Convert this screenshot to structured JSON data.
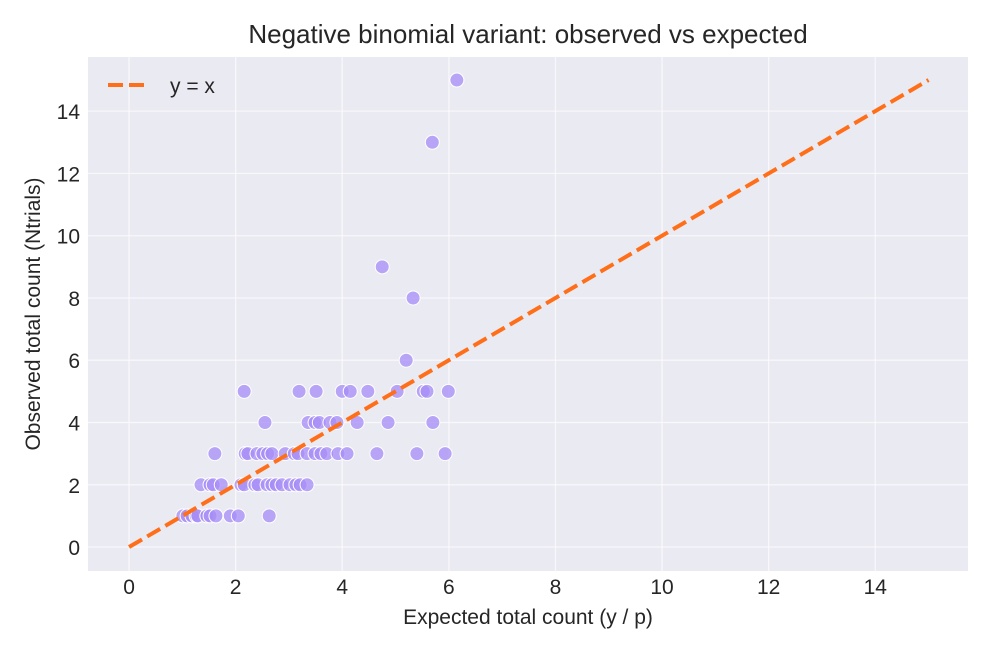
{
  "chart_data": {
    "type": "scatter",
    "title": "Negative binomial variant: observed vs expected",
    "xlabel": "Expected total count (y / p)",
    "ylabel": "Observed total count (Ntrials)",
    "xlim": [
      -0.77,
      15.74
    ],
    "ylim": [
      -0.77,
      15.74
    ],
    "xticks": [
      0,
      2,
      4,
      6,
      8,
      10,
      12,
      14
    ],
    "yticks": [
      0,
      2,
      4,
      6,
      8,
      10,
      12,
      14
    ],
    "grid": true,
    "legend_position": "top-left",
    "colors": {
      "points": "#a68cf7",
      "reference_line": "#ff6f1a",
      "plot_bg": "#eaeaf2",
      "grid": "#ffffff"
    },
    "reference_line": {
      "name": "y = x",
      "x": [
        0,
        15
      ],
      "y": [
        0,
        15
      ],
      "style": "dashed"
    },
    "points": {
      "x": [
        1.01,
        1.09,
        1.18,
        1.26,
        1.29,
        1.46,
        1.52,
        1.63,
        1.9,
        2.05,
        2.63,
        1.35,
        1.52,
        1.58,
        1.73,
        2.1,
        2.16,
        2.36,
        2.42,
        2.59,
        2.68,
        2.76,
        2.87,
        3.02,
        3.13,
        3.21,
        3.34,
        1.61,
        2.18,
        2.23,
        2.4,
        2.51,
        2.6,
        2.68,
        2.93,
        3.1,
        3.17,
        3.34,
        3.49,
        3.6,
        3.71,
        3.92,
        4.09,
        4.65,
        5.4,
        5.93,
        2.55,
        3.36,
        3.49,
        3.57,
        3.77,
        3.9,
        4.28,
        4.86,
        5.7,
        2.16,
        3.19,
        3.51,
        4.0,
        4.15,
        4.48,
        5.03,
        5.52,
        5.59,
        5.99,
        5.2,
        5.33,
        4.75,
        5.69,
        6.15
      ],
      "y": [
        1,
        1,
        1,
        1,
        1,
        1,
        1,
        1,
        1,
        1,
        1,
        2,
        2,
        2,
        2,
        2,
        2,
        2,
        2,
        2,
        2,
        2,
        2,
        2,
        2,
        2,
        2,
        3,
        3,
        3,
        3,
        3,
        3,
        3,
        3,
        3,
        3,
        3,
        3,
        3,
        3,
        3,
        3,
        3,
        3,
        3,
        4,
        4,
        4,
        4,
        4,
        4,
        4,
        4,
        4,
        5,
        5,
        5,
        5,
        5,
        5,
        5,
        5,
        5,
        5,
        6,
        8,
        9,
        13,
        15
      ]
    }
  }
}
